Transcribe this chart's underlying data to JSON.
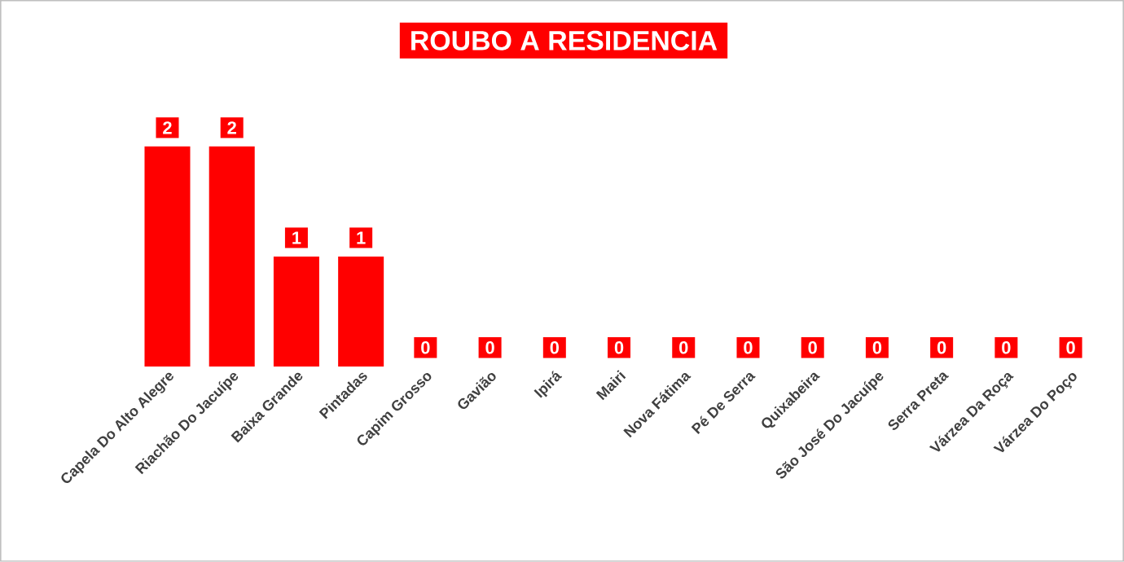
{
  "chart_data": {
    "type": "bar",
    "title": "ROUBO A RESIDENCIA",
    "categories": [
      "Capela Do Alto Alegre",
      "Riachão Do Jacuípe",
      "Baixa Grande",
      "Pintadas",
      "Capim Grosso",
      "Gavião",
      "Ipirá",
      "Mairi",
      "Nova Fátima",
      "Pé De Serra",
      "Quixabeira",
      "São José Do Jacuípe",
      "Serra Preta",
      "Várzea Da Roça",
      "Várzea Do Poço"
    ],
    "values": [
      2,
      2,
      1,
      1,
      0,
      0,
      0,
      0,
      0,
      0,
      0,
      0,
      0,
      0,
      0
    ],
    "color": "#ff0000",
    "data_labels": true
  }
}
